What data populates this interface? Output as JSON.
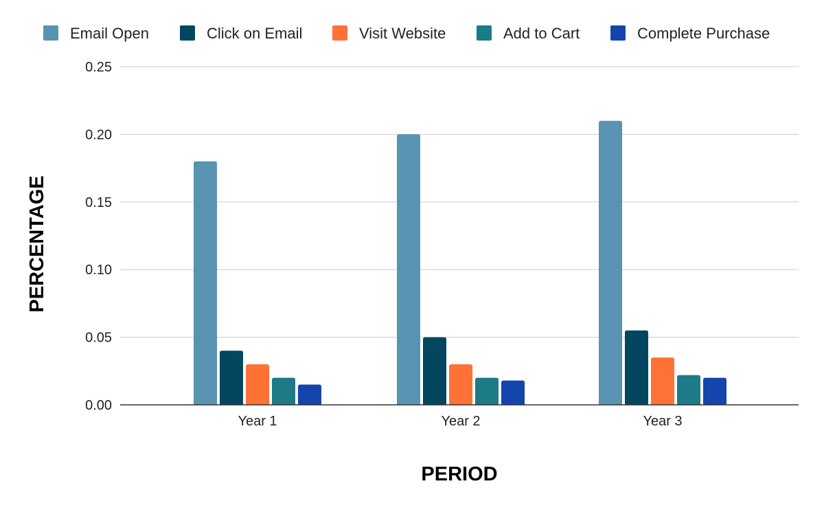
{
  "chart_data": {
    "type": "bar",
    "title": "",
    "xlabel": "PERIOD",
    "ylabel": "PERCENTAGE",
    "categories": [
      "Year 1",
      "Year 2",
      "Year 3"
    ],
    "series": [
      {
        "name": "Email Open",
        "color": "#5893b1",
        "values": [
          0.18,
          0.2,
          0.21
        ]
      },
      {
        "name": "Click on Email",
        "color": "#03465f",
        "values": [
          0.04,
          0.05,
          0.055
        ]
      },
      {
        "name": "Visit Website",
        "color": "#ff7236",
        "values": [
          0.03,
          0.03,
          0.035
        ]
      },
      {
        "name": "Add to Cart",
        "color": "#1d7a87",
        "values": [
          0.02,
          0.02,
          0.022
        ]
      },
      {
        "name": "Complete Purchase",
        "color": "#1445ad",
        "values": [
          0.015,
          0.018,
          0.02
        ]
      }
    ],
    "ylim": [
      0,
      0.25
    ],
    "yticks": [
      "0.00",
      "0.05",
      "0.10",
      "0.15",
      "0.20",
      "0.25"
    ],
    "grid": true,
    "legend_position": "top"
  }
}
